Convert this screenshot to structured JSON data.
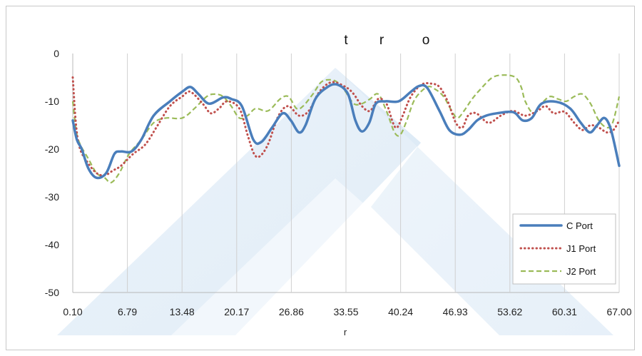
{
  "chart_data": {
    "type": "line",
    "title_parts": [
      "t",
      "r",
      "o"
    ],
    "xlabel": "r",
    "ylabel": "",
    "xlim": [
      0.1,
      67.0
    ],
    "ylim": [
      -50,
      0
    ],
    "x_ticks": [
      "0.10",
      "6.79",
      "13.48",
      "20.17",
      "26.86",
      "33.55",
      "40.24",
      "46.93",
      "53.62",
      "60.31",
      "67.00"
    ],
    "y_ticks": [
      "0",
      "-10",
      "-20",
      "-30",
      "-40",
      "-50"
    ],
    "grid": "vertical",
    "legend_position": "bottom-right",
    "series": [
      {
        "name": "C Port",
        "color": "#4a7ebb",
        "style": "solid",
        "points": [
          [
            0.1,
            -14
          ],
          [
            0.6,
            -18
          ],
          [
            1.2,
            -20
          ],
          [
            2.0,
            -24
          ],
          [
            3.0,
            -26
          ],
          [
            4.2,
            -25
          ],
          [
            5.2,
            -21
          ],
          [
            6.0,
            -20.5
          ],
          [
            7.3,
            -20.5
          ],
          [
            8.5,
            -18
          ],
          [
            10.0,
            -13
          ],
          [
            12.0,
            -10
          ],
          [
            13.5,
            -8
          ],
          [
            14.5,
            -7
          ],
          [
            15.5,
            -8.5
          ],
          [
            16.8,
            -10.5
          ],
          [
            18.5,
            -9.2
          ],
          [
            19.5,
            -9.5
          ],
          [
            20.8,
            -11
          ],
          [
            22.2,
            -18
          ],
          [
            23.2,
            -18.5
          ],
          [
            24.5,
            -15.5
          ],
          [
            25.8,
            -12.5
          ],
          [
            26.8,
            -14
          ],
          [
            27.8,
            -16.5
          ],
          [
            28.6,
            -15
          ],
          [
            29.8,
            -9.5
          ],
          [
            31.3,
            -7
          ],
          [
            32.5,
            -6.5
          ],
          [
            33.8,
            -8.5
          ],
          [
            34.7,
            -14
          ],
          [
            35.5,
            -16.3
          ],
          [
            36.4,
            -14.5
          ],
          [
            37.2,
            -10.5
          ],
          [
            38.4,
            -10
          ],
          [
            40.0,
            -10
          ],
          [
            41.5,
            -8
          ],
          [
            42.5,
            -6.8
          ],
          [
            43.5,
            -7.2
          ],
          [
            45.0,
            -12
          ],
          [
            46.2,
            -16
          ],
          [
            47.5,
            -17
          ],
          [
            48.5,
            -16
          ],
          [
            49.6,
            -14
          ],
          [
            50.7,
            -13
          ],
          [
            52.0,
            -12.5
          ],
          [
            53.5,
            -12.2
          ],
          [
            54.3,
            -12.5
          ],
          [
            55.2,
            -14
          ],
          [
            56.3,
            -13.5
          ],
          [
            57.5,
            -10.5
          ],
          [
            59.3,
            -10.1
          ],
          [
            61.0,
            -11.5
          ],
          [
            62.3,
            -14.5
          ],
          [
            63.4,
            -16.5
          ],
          [
            64.3,
            -15
          ],
          [
            65.2,
            -13.5
          ],
          [
            66.0,
            -16
          ],
          [
            67.0,
            -23.5
          ]
        ]
      },
      {
        "name": "J1 Port",
        "color": "#c0504d",
        "style": "dotted",
        "points": [
          [
            0.1,
            -5
          ],
          [
            0.5,
            -15
          ],
          [
            1.0,
            -20
          ],
          [
            2.0,
            -23
          ],
          [
            3.0,
            -25
          ],
          [
            4.0,
            -25.5
          ],
          [
            5.0,
            -24.5
          ],
          [
            6.0,
            -23.5
          ],
          [
            7.5,
            -21
          ],
          [
            9.0,
            -19
          ],
          [
            10.5,
            -15
          ],
          [
            12.0,
            -11
          ],
          [
            13.5,
            -9
          ],
          [
            14.5,
            -8
          ],
          [
            16.0,
            -10.5
          ],
          [
            17.0,
            -12.5
          ],
          [
            18.0,
            -11.5
          ],
          [
            19.0,
            -10
          ],
          [
            20.5,
            -11.5
          ],
          [
            21.5,
            -17
          ],
          [
            22.3,
            -21
          ],
          [
            23.0,
            -21.5
          ],
          [
            24.0,
            -19
          ],
          [
            25.3,
            -13
          ],
          [
            26.5,
            -11
          ],
          [
            27.8,
            -13
          ],
          [
            29.0,
            -12
          ],
          [
            30.3,
            -8
          ],
          [
            31.8,
            -6
          ],
          [
            33.5,
            -7
          ],
          [
            34.5,
            -8.5
          ],
          [
            35.5,
            -11
          ],
          [
            36.5,
            -12
          ],
          [
            37.5,
            -9.5
          ],
          [
            38.5,
            -10.5
          ],
          [
            39.3,
            -14.5
          ],
          [
            39.8,
            -15.5
          ],
          [
            40.5,
            -13
          ],
          [
            41.5,
            -9
          ],
          [
            42.8,
            -6.5
          ],
          [
            44.0,
            -6.3
          ],
          [
            45.0,
            -7
          ],
          [
            46.0,
            -10
          ],
          [
            47.0,
            -14.5
          ],
          [
            47.8,
            -15.5
          ],
          [
            48.5,
            -13
          ],
          [
            49.5,
            -12.5
          ],
          [
            51.0,
            -14.5
          ],
          [
            52.5,
            -13
          ],
          [
            54.0,
            -12
          ],
          [
            55.5,
            -13
          ],
          [
            57.0,
            -12
          ],
          [
            58.0,
            -11
          ],
          [
            59.0,
            -12.5
          ],
          [
            60.3,
            -12.2
          ],
          [
            61.5,
            -14.5
          ],
          [
            62.5,
            -16
          ],
          [
            63.5,
            -15
          ],
          [
            64.5,
            -15.5
          ],
          [
            65.5,
            -16.5
          ],
          [
            66.3,
            -16
          ],
          [
            67.0,
            -14
          ]
        ]
      },
      {
        "name": "J2 Port",
        "color": "#9bbb59",
        "style": "dashed",
        "points": [
          [
            0.1,
            -10
          ],
          [
            0.5,
            -16
          ],
          [
            1.0,
            -19
          ],
          [
            2.0,
            -22
          ],
          [
            3.0,
            -25
          ],
          [
            4.0,
            -26
          ],
          [
            4.8,
            -27
          ],
          [
            5.8,
            -25
          ],
          [
            7.0,
            -21
          ],
          [
            8.5,
            -18
          ],
          [
            10.0,
            -14.5
          ],
          [
            11.5,
            -13.5
          ],
          [
            13.5,
            -13.5
          ],
          [
            15.0,
            -11.5
          ],
          [
            16.5,
            -9
          ],
          [
            17.5,
            -8.5
          ],
          [
            18.5,
            -9
          ],
          [
            19.5,
            -11
          ],
          [
            20.5,
            -13.5
          ],
          [
            21.5,
            -13
          ],
          [
            22.5,
            -11.5
          ],
          [
            24.0,
            -12
          ],
          [
            25.5,
            -9.5
          ],
          [
            26.5,
            -9
          ],
          [
            27.5,
            -11.5
          ],
          [
            28.3,
            -11
          ],
          [
            29.5,
            -8.5
          ],
          [
            30.5,
            -6
          ],
          [
            31.5,
            -5.5
          ],
          [
            32.5,
            -6
          ],
          [
            33.5,
            -8
          ],
          [
            34.5,
            -10.5
          ],
          [
            35.5,
            -10.5
          ],
          [
            36.5,
            -9.5
          ],
          [
            37.5,
            -8.5
          ],
          [
            38.5,
            -12
          ],
          [
            39.5,
            -16.5
          ],
          [
            40.2,
            -17
          ],
          [
            41.0,
            -14
          ],
          [
            42.0,
            -9.5
          ],
          [
            43.5,
            -7
          ],
          [
            44.5,
            -7.5
          ],
          [
            45.5,
            -9
          ],
          [
            46.5,
            -12
          ],
          [
            47.2,
            -13.5
          ],
          [
            48.0,
            -12
          ],
          [
            49.0,
            -9.5
          ],
          [
            50.0,
            -7.5
          ],
          [
            51.5,
            -5
          ],
          [
            53.0,
            -4.5
          ],
          [
            54.3,
            -5
          ],
          [
            55.0,
            -7
          ],
          [
            55.5,
            -10
          ],
          [
            56.5,
            -12.5
          ],
          [
            57.5,
            -10.5
          ],
          [
            58.5,
            -9
          ],
          [
            59.5,
            -9.5
          ],
          [
            60.5,
            -10
          ],
          [
            61.5,
            -9
          ],
          [
            62.5,
            -8.5
          ],
          [
            63.5,
            -10.5
          ],
          [
            64.5,
            -14
          ],
          [
            65.5,
            -15.5
          ],
          [
            66.2,
            -14.5
          ],
          [
            67.0,
            -9
          ]
        ]
      }
    ]
  }
}
